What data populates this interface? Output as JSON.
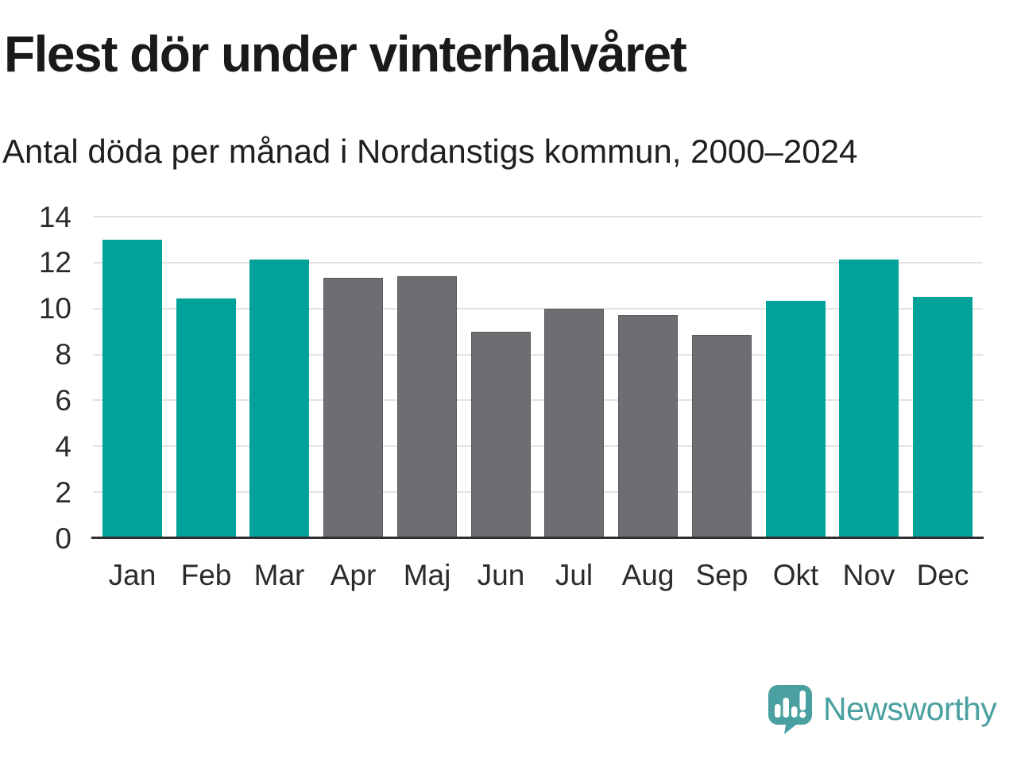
{
  "title": "Flest dör under vinterhalvåret",
  "subtitle": "Antal döda per månad i Nordanstigs kommun, 2000–2024",
  "logo": {
    "text": "Newsworthy"
  },
  "colors": {
    "highlight": "#00a29a",
    "muted": "#6d6d72",
    "muted_border": "#595960",
    "gridline": "#e3e3e3",
    "axis_line": "#2e2e33",
    "text": "#1a1a1a",
    "logo_teal": "#4aa0a0"
  },
  "chart_data": {
    "type": "bar",
    "title": "Flest dör under vinterhalvåret",
    "subtitle": "Antal döda per månad i Nordanstigs kommun, 2000–2024",
    "categories": [
      "Jan",
      "Feb",
      "Mar",
      "Apr",
      "Maj",
      "Jun",
      "Jul",
      "Aug",
      "Sep",
      "Okt",
      "Nov",
      "Dec"
    ],
    "values": [
      13.0,
      10.45,
      12.15,
      11.35,
      11.4,
      9.0,
      10.0,
      9.7,
      8.85,
      10.35,
      12.15,
      10.5
    ],
    "highlighted_categories": [
      "Jan",
      "Feb",
      "Mar",
      "Okt",
      "Nov",
      "Dec"
    ],
    "highlight_color": "#00a29a",
    "muted_color": "#6d6d72",
    "xlabel": "",
    "ylabel": "",
    "ylim": [
      0,
      14
    ],
    "yticks": [
      0,
      2,
      4,
      6,
      8,
      10,
      12,
      14
    ],
    "grid": "horizontal",
    "legend": "none"
  }
}
